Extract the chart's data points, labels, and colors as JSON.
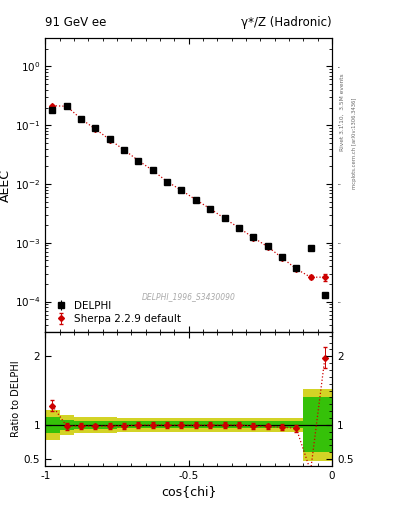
{
  "title_left": "91 GeV ee",
  "title_right": "γ*/Z (Hadronic)",
  "ylabel_main": "AEEC",
  "ylabel_ratio": "Ratio to DELPHI",
  "xlabel": "cos{chi}",
  "right_label": "Rivet 3.1.10,  3.5M events",
  "right_label2": "mcplots.cern.ch [arXiv:1306.3436]",
  "watermark": "DELPHI_1996_S3430090",
  "legend_data": "DELPHI",
  "legend_mc": "Sherpa 2.2.9 default",
  "data_x": [
    -0.975,
    -0.925,
    -0.875,
    -0.825,
    -0.775,
    -0.725,
    -0.675,
    -0.625,
    -0.575,
    -0.525,
    -0.475,
    -0.425,
    -0.375,
    -0.325,
    -0.275,
    -0.225,
    -0.175,
    -0.125,
    -0.075,
    -0.025
  ],
  "data_y": [
    0.185,
    0.215,
    0.13,
    0.088,
    0.058,
    0.038,
    0.025,
    0.017,
    0.011,
    0.0078,
    0.0054,
    0.0038,
    0.0026,
    0.0018,
    0.00125,
    0.00088,
    0.00058,
    0.00038,
    0.0008,
    0.00013
  ],
  "data_yerr": [
    0.006,
    0.006,
    0.004,
    0.003,
    0.002,
    0.0012,
    0.0009,
    0.0006,
    0.0004,
    0.0003,
    0.0002,
    0.00013,
    9e-05,
    6e-05,
    5e-05,
    3e-05,
    2e-05,
    2e-05,
    5e-05,
    1.5e-05
  ],
  "mc_x": [
    -0.975,
    -0.925,
    -0.875,
    -0.825,
    -0.775,
    -0.725,
    -0.675,
    -0.625,
    -0.575,
    -0.525,
    -0.475,
    -0.425,
    -0.375,
    -0.325,
    -0.275,
    -0.225,
    -0.175,
    -0.125,
    -0.075,
    -0.025
  ],
  "mc_y": [
    0.215,
    0.21,
    0.128,
    0.086,
    0.057,
    0.038,
    0.025,
    0.017,
    0.011,
    0.0078,
    0.0054,
    0.0038,
    0.0026,
    0.0018,
    0.00123,
    0.00086,
    0.00056,
    0.00036,
    0.00026,
    0.00026
  ],
  "mc_yerr": [
    0.008,
    0.007,
    0.004,
    0.003,
    0.002,
    0.0012,
    0.0009,
    0.0006,
    0.0004,
    0.0003,
    0.0002,
    0.00013,
    9e-05,
    6e-05,
    5e-05,
    3e-05,
    2e-05,
    2e-05,
    2e-05,
    4e-05
  ],
  "ratio_y": [
    1.28,
    0.98,
    0.985,
    0.977,
    0.983,
    0.984,
    0.998,
    0.998,
    0.997,
    0.996,
    0.996,
    0.996,
    0.997,
    0.998,
    0.982,
    0.978,
    0.965,
    0.951,
    0.325,
    1.98
  ],
  "ratio_yerr": [
    0.08,
    0.05,
    0.04,
    0.04,
    0.04,
    0.04,
    0.04,
    0.04,
    0.04,
    0.04,
    0.04,
    0.04,
    0.04,
    0.04,
    0.04,
    0.04,
    0.04,
    0.05,
    0.05,
    0.15
  ],
  "green_band_lo": [
    0.88,
    0.93,
    0.94,
    0.94,
    0.94,
    0.95,
    0.95,
    0.95,
    0.95,
    0.95,
    0.95,
    0.95,
    0.95,
    0.95,
    0.95,
    0.95,
    0.95,
    0.95,
    0.6,
    0.6
  ],
  "green_band_hi": [
    1.12,
    1.07,
    1.06,
    1.06,
    1.06,
    1.05,
    1.05,
    1.05,
    1.05,
    1.05,
    1.05,
    1.05,
    1.05,
    1.05,
    1.05,
    1.05,
    1.05,
    1.05,
    1.4,
    1.4
  ],
  "yellow_band_lo": [
    0.78,
    0.85,
    0.88,
    0.88,
    0.88,
    0.9,
    0.9,
    0.9,
    0.9,
    0.9,
    0.9,
    0.9,
    0.9,
    0.9,
    0.9,
    0.9,
    0.9,
    0.9,
    0.47,
    0.47
  ],
  "yellow_band_hi": [
    1.22,
    1.15,
    1.12,
    1.12,
    1.12,
    1.1,
    1.1,
    1.1,
    1.1,
    1.1,
    1.1,
    1.1,
    1.1,
    1.1,
    1.1,
    1.1,
    1.1,
    1.1,
    1.53,
    1.53
  ],
  "bg_color": "#ffffff",
  "data_color": "#000000",
  "mc_color": "#cc0000",
  "green_color": "#00bb00",
  "yellow_color": "#cccc00",
  "xlim": [
    -1.0,
    0.0
  ],
  "ylim_main_lo": 3e-05,
  "ylim_main_hi": 3.0,
  "ylim_ratio_lo": 0.4,
  "ylim_ratio_hi": 2.35
}
